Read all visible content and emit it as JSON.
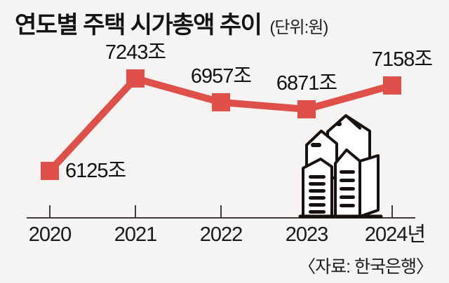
{
  "header": {
    "title": "연도별 주택 시가총액 추이",
    "unit": "(단위:원)"
  },
  "source_label": "〈자료: 한국은행〉",
  "colors": {
    "background": "#f5f4f2",
    "accent": "#e0504b",
    "axis": "#3f3b3a",
    "text": "#161616"
  },
  "chart_data": {
    "type": "line",
    "title": "연도별 주택 시가총액 추이",
    "unit_label": "(단위:원)",
    "categories": [
      "2020",
      "2021",
      "2022",
      "2023",
      "2024년"
    ],
    "values": [
      6125,
      7243,
      6957,
      6871,
      7158
    ],
    "value_labels": [
      "6125조",
      "7243조",
      "6957조",
      "6871조",
      "7158조"
    ],
    "line_color": "#e0504b",
    "marker_shape": "square",
    "grid": false,
    "legend": false,
    "y_axis_visible": false,
    "x_axis_visible": true,
    "source": "〈자료: 한국은행〉"
  }
}
